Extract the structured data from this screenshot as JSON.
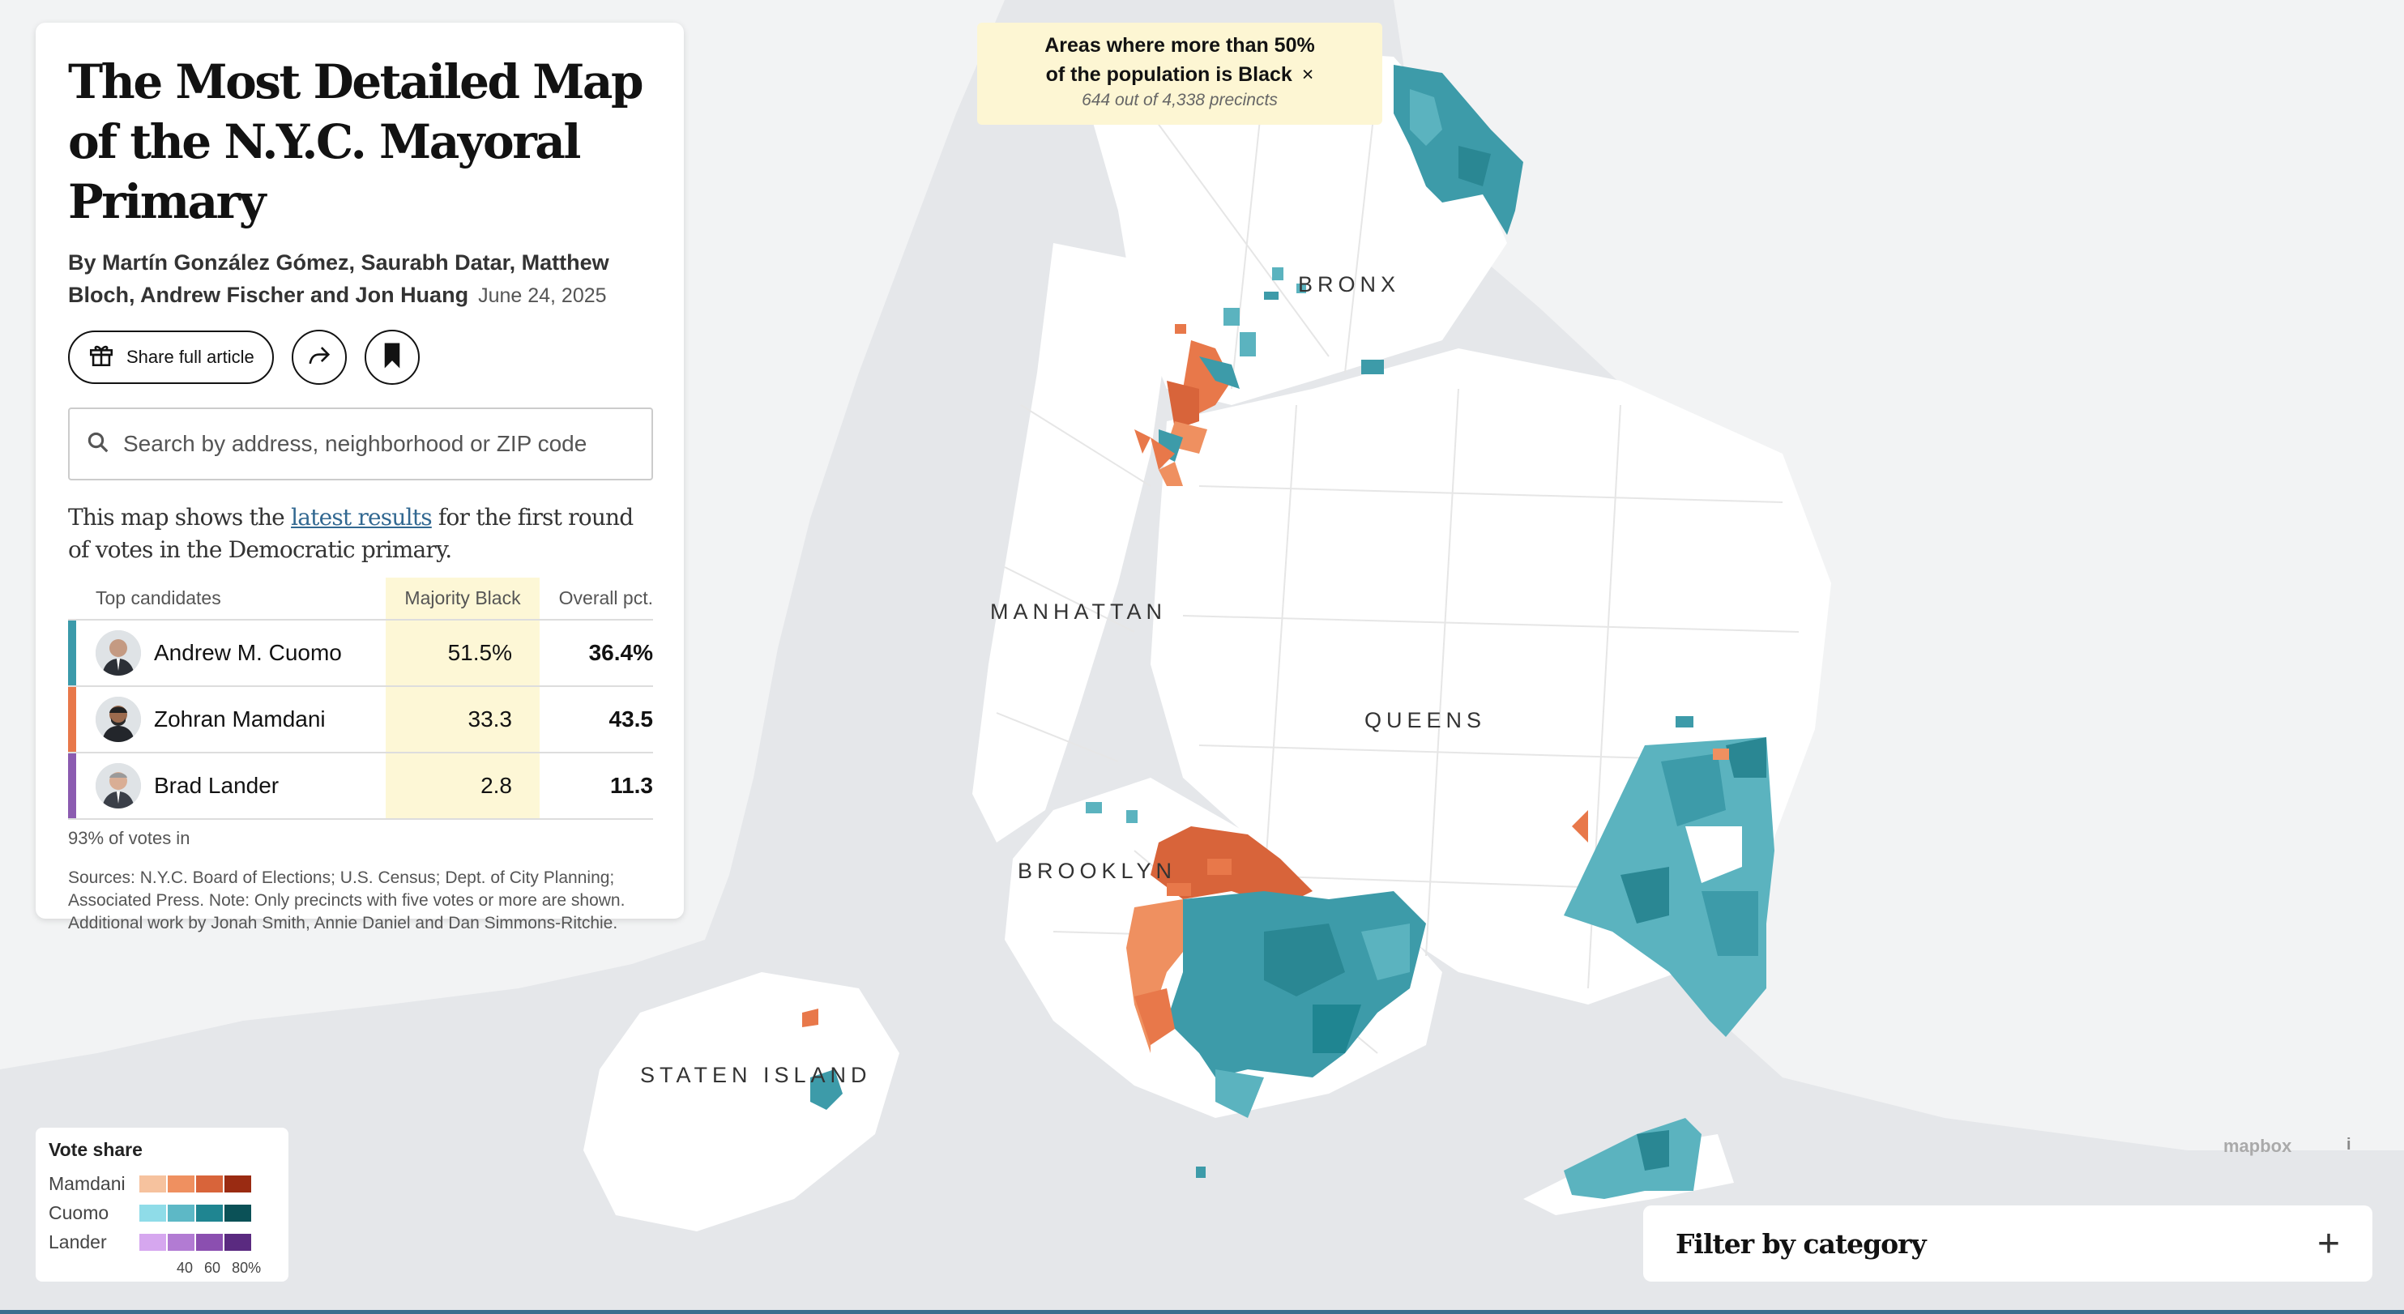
{
  "banner": {
    "line1": "Areas where more than 50%",
    "line2": "of the population is Black",
    "close": "×",
    "subtitle": "644 out of 4,338 precincts"
  },
  "article": {
    "title": "The Most Detailed Map of the N.Y.C. Mayoral Primary",
    "byline": "By Martín González Gómez, Saurabh Datar, Matthew Bloch, Andrew Fischer and Jon Huang",
    "date": "June 24, 2025",
    "share_label": "Share full article"
  },
  "search": {
    "placeholder": "Search by address, neighborhood or ZIP code"
  },
  "intro": {
    "before": "This map shows the ",
    "link": "latest results",
    "after": " for the first round of votes in the Democratic primary."
  },
  "results": {
    "headers": {
      "candidates": "Top candidates",
      "majority": "Majority Black",
      "overall": "Overall pct."
    },
    "rows": [
      {
        "name": "Andrew M. Cuomo",
        "majority": "51.5%",
        "overall": "36.4%",
        "color": "#3b9aaa"
      },
      {
        "name": "Zohran Mamdani",
        "majority": "33.3",
        "overall": "43.5",
        "color": "#e8784a"
      },
      {
        "name": "Brad Lander",
        "majority": "2.8",
        "overall": "11.3",
        "color": "#8b5bb0"
      }
    ],
    "votes_in": "93% of votes in",
    "sources": "Sources: N.Y.C. Board of Elections; U.S. Census; Dept. of City Planning; Associated Press. Note: Only precincts with five votes or more are shown. Additional work by Jonah Smith, Annie Daniel and Dan Simmons-Ritchie."
  },
  "map": {
    "labels": {
      "bronx": "BRONX",
      "manhattan": "MANHATTAN",
      "queens": "QUEENS",
      "brooklyn": "BROOKLYN",
      "staten_island": "STATEN ISLAND"
    },
    "attribution": "mapbox",
    "info": "i"
  },
  "legend": {
    "title": "Vote share",
    "rows": [
      {
        "name": "Mamdani",
        "colors": [
          "#f6c29e",
          "#ef9060",
          "#d8643a",
          "#9a2b12"
        ]
      },
      {
        "name": "Cuomo",
        "colors": [
          "#8fdce8",
          "#5db8c6",
          "#1f8591",
          "#0b5157"
        ]
      },
      {
        "name": "Lander",
        "colors": [
          "#d6a7ef",
          "#b27bd3",
          "#8b4fb0",
          "#5a2a80"
        ]
      }
    ],
    "ticks": [
      "40",
      "60",
      "80%"
    ]
  },
  "filter": {
    "label": "Filter by category",
    "plus": "+"
  }
}
